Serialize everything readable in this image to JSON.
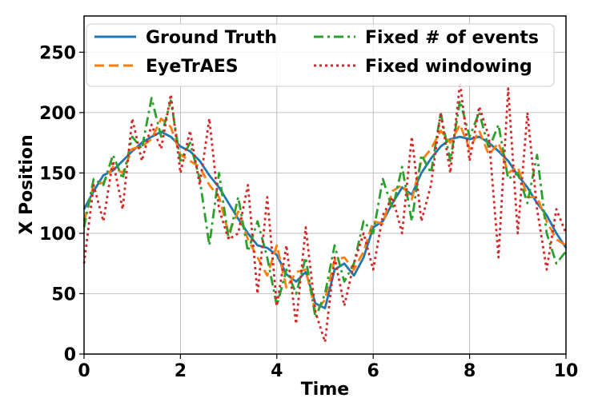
{
  "chart_data": {
    "type": "line",
    "xlabel": "Time",
    "ylabel": "X Position",
    "xlim": [
      0,
      10
    ],
    "ylim": [
      0,
      280
    ],
    "xticks": [
      0,
      2,
      4,
      6,
      8,
      10
    ],
    "yticks": [
      0,
      50,
      100,
      150,
      200,
      250
    ],
    "grid": true,
    "legend": {
      "placement": "top",
      "columns": 2
    },
    "series": [
      {
        "name": "Ground Truth",
        "color": "#1f77b4",
        "style": "solid",
        "x": [
          0,
          0.2,
          0.4,
          0.6,
          0.8,
          1.0,
          1.2,
          1.4,
          1.6,
          1.8,
          2.0,
          2.2,
          2.4,
          2.6,
          2.8,
          3.0,
          3.2,
          3.4,
          3.6,
          3.8,
          4.0,
          4.2,
          4.4,
          4.6,
          4.8,
          5.0,
          5.2,
          5.4,
          5.6,
          5.8,
          6.0,
          6.2,
          6.4,
          6.6,
          6.8,
          7.0,
          7.2,
          7.4,
          7.6,
          7.8,
          8.0,
          8.2,
          8.4,
          8.6,
          8.8,
          9.0,
          9.2,
          9.4,
          9.6,
          9.8,
          10.0
        ],
        "y": [
          120,
          135,
          148,
          152,
          160,
          168,
          175,
          180,
          184,
          180,
          172,
          168,
          160,
          148,
          138,
          125,
          112,
          100,
          90,
          88,
          82,
          66,
          60,
          68,
          42,
          38,
          70,
          75,
          65,
          80,
          105,
          110,
          125,
          138,
          132,
          150,
          162,
          172,
          178,
          180,
          178,
          180,
          175,
          168,
          160,
          148,
          138,
          125,
          115,
          100,
          88
        ]
      },
      {
        "name": "EyeTrAES",
        "color": "#ff7f0e",
        "style": "dashed",
        "x": [
          0,
          0.2,
          0.4,
          0.6,
          0.8,
          1.0,
          1.2,
          1.4,
          1.6,
          1.8,
          2.0,
          2.2,
          2.4,
          2.6,
          2.8,
          3.0,
          3.2,
          3.4,
          3.6,
          3.8,
          4.0,
          4.2,
          4.4,
          4.6,
          4.8,
          5.0,
          5.2,
          5.4,
          5.6,
          5.8,
          6.0,
          6.2,
          6.4,
          6.6,
          6.8,
          7.0,
          7.2,
          7.4,
          7.6,
          7.8,
          8.0,
          8.2,
          8.4,
          8.6,
          8.8,
          9.0,
          9.2,
          9.4,
          9.6,
          9.8,
          10.0
        ],
        "y": [
          110,
          140,
          142,
          155,
          150,
          170,
          172,
          178,
          195,
          188,
          165,
          160,
          155,
          140,
          130,
          100,
          118,
          95,
          80,
          65,
          90,
          55,
          68,
          70,
          35,
          45,
          78,
          80,
          70,
          85,
          110,
          108,
          135,
          140,
          128,
          160,
          170,
          185,
          175,
          190,
          170,
          185,
          165,
          175,
          150,
          155,
          130,
          130,
          110,
          95,
          90
        ]
      },
      {
        "name": "Fixed # of events",
        "color": "#2ca02c",
        "style": "dashdot",
        "x": [
          0,
          0.2,
          0.4,
          0.6,
          0.8,
          1.0,
          1.2,
          1.4,
          1.6,
          1.8,
          2.0,
          2.2,
          2.4,
          2.6,
          2.8,
          3.0,
          3.2,
          3.4,
          3.6,
          3.8,
          4.0,
          4.2,
          4.4,
          4.6,
          4.8,
          5.0,
          5.2,
          5.4,
          5.6,
          5.8,
          6.0,
          6.2,
          6.4,
          6.6,
          6.8,
          7.0,
          7.2,
          7.4,
          7.6,
          7.8,
          8.0,
          8.2,
          8.4,
          8.6,
          8.8,
          9.0,
          9.2,
          9.4,
          9.6,
          9.8,
          10.0
        ],
        "y": [
          105,
          145,
          140,
          165,
          145,
          180,
          170,
          212,
          180,
          210,
          160,
          175,
          145,
          90,
          150,
          95,
          130,
          85,
          110,
          80,
          40,
          70,
          50,
          80,
          30,
          50,
          90,
          60,
          75,
          110,
          100,
          145,
          120,
          155,
          110,
          165,
          150,
          200,
          160,
          210,
          180,
          200,
          170,
          190,
          145,
          150,
          125,
          165,
          100,
          75,
          85
        ]
      },
      {
        "name": "Fixed windowing",
        "color": "#d62728",
        "style": "dotted",
        "x": [
          0,
          0.2,
          0.4,
          0.6,
          0.8,
          1.0,
          1.2,
          1.4,
          1.6,
          1.8,
          2.0,
          2.2,
          2.4,
          2.6,
          2.8,
          3.0,
          3.2,
          3.4,
          3.6,
          3.8,
          4.0,
          4.2,
          4.4,
          4.6,
          4.8,
          5.0,
          5.2,
          5.4,
          5.6,
          5.8,
          6.0,
          6.2,
          6.4,
          6.6,
          6.8,
          7.0,
          7.2,
          7.4,
          7.6,
          7.8,
          8.0,
          8.2,
          8.4,
          8.6,
          8.8,
          9.0,
          9.2,
          9.4,
          9.6,
          9.8,
          10.0
        ],
        "y": [
          75,
          140,
          110,
          160,
          120,
          195,
          160,
          190,
          170,
          215,
          150,
          185,
          140,
          195,
          120,
          95,
          100,
          140,
          50,
          130,
          40,
          90,
          25,
          105,
          35,
          10,
          80,
          40,
          75,
          100,
          70,
          115,
          130,
          100,
          180,
          110,
          140,
          200,
          150,
          225,
          160,
          205,
          180,
          80,
          220,
          100,
          200,
          120,
          70,
          120,
          100
        ]
      }
    ]
  }
}
